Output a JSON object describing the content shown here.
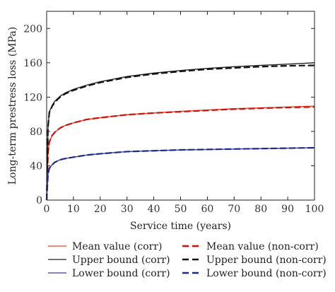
{
  "chart_data": {
    "type": "line",
    "title": "",
    "xlabel": "Service time (years)",
    "ylabel": "Long-term prestress loss (MPa)",
    "xlim": [
      0,
      100
    ],
    "ylim": [
      0,
      220
    ],
    "xticks": [
      0,
      10,
      20,
      30,
      40,
      50,
      60,
      70,
      80,
      90,
      100
    ],
    "yticks": [
      0,
      40,
      80,
      120,
      160,
      200
    ],
    "grid": false,
    "legend_position": "bottom",
    "x": [
      0,
      0.5,
      1,
      2,
      3,
      5,
      7,
      10,
      15,
      20,
      30,
      40,
      50,
      60,
      70,
      80,
      90,
      100
    ],
    "series": [
      {
        "name": "Mean value (corr)",
        "color": "#e8441a",
        "style": "solid",
        "values": [
          0,
          55,
          68,
          75,
          79,
          84,
          87,
          90,
          94,
          96,
          99.5,
          101.5,
          103.5,
          105,
          106.5,
          107.5,
          108.5,
          109.5
        ]
      },
      {
        "name": "Upper bound (corr)",
        "color": "#222222",
        "style": "solid",
        "values": [
          0,
          85,
          103,
          110,
          115,
          121,
          125,
          129,
          134,
          138,
          144,
          148,
          151,
          153.5,
          155.5,
          157,
          158.5,
          160
        ]
      },
      {
        "name": "Lower bound (corr)",
        "color": "#3a3ab8",
        "style": "solid",
        "values": [
          0,
          30,
          37,
          41,
          44,
          47,
          48.5,
          50,
          52.5,
          54,
          56.5,
          57.5,
          58.5,
          59,
          59.5,
          60,
          60.5,
          61
        ]
      },
      {
        "name": "Mean value (non-corr)",
        "color": "#d01010",
        "style": "dashed",
        "values": [
          0,
          55,
          68,
          75,
          79,
          84,
          87,
          90,
          94,
          96,
          99.5,
          101.5,
          103,
          104.5,
          106,
          107,
          108,
          108.5
        ]
      },
      {
        "name": "Upper bound (non-corr)",
        "color": "#111111",
        "style": "dashed",
        "values": [
          0,
          85,
          102,
          109,
          114,
          120,
          124,
          128,
          133,
          137,
          143,
          147,
          150,
          152.5,
          154,
          155.5,
          156.5,
          157
        ]
      },
      {
        "name": "Lower bound (non-corr)",
        "color": "#1a2a8a",
        "style": "dashed",
        "values": [
          0,
          30,
          37,
          41,
          44,
          47,
          48.5,
          50,
          52.5,
          54,
          56.5,
          57.5,
          58.5,
          59,
          59.5,
          60,
          60.5,
          61
        ]
      }
    ]
  }
}
